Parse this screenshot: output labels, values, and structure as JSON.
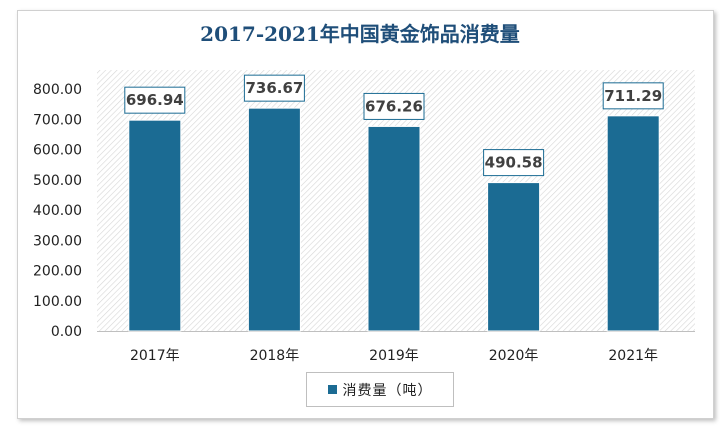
{
  "chart_data": {
    "type": "bar",
    "title": "2017-2021年中国黄金饰品消费量",
    "categories": [
      "2017年",
      "2018年",
      "2019年",
      "2020年",
      "2021年"
    ],
    "series": [
      {
        "name": "消费量（吨）",
        "values": [
          696.94,
          736.67,
          676.26,
          490.58,
          711.29
        ]
      }
    ],
    "data_labels": [
      "696.94",
      "736.67",
      "676.26",
      "490.58",
      "711.29"
    ],
    "ylim": [
      0,
      800
    ],
    "yticks": [
      "0.00",
      "100.00",
      "200.00",
      "300.00",
      "400.00",
      "500.00",
      "600.00",
      "700.00",
      "800.00"
    ],
    "grid": false,
    "legend_position": "bottom",
    "bar_color": "#1b6b93",
    "title_color": "#1f4e79"
  }
}
